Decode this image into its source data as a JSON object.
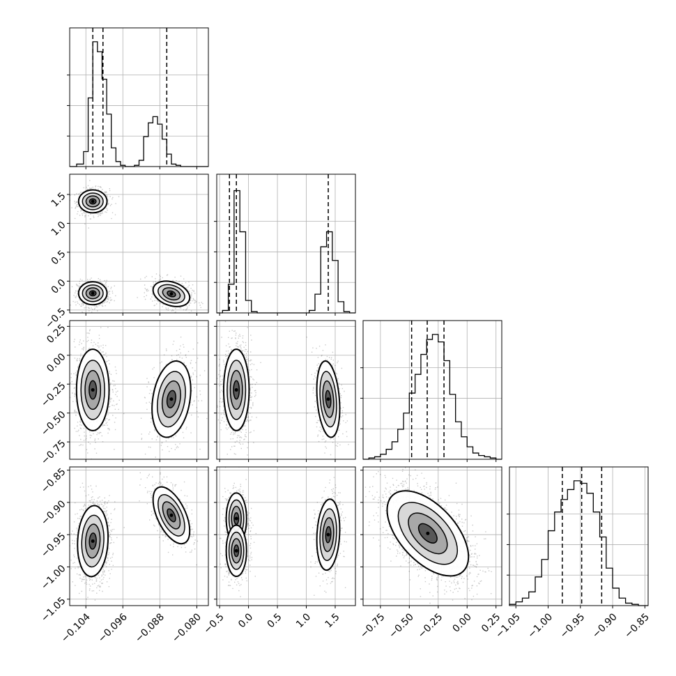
{
  "chart_data": {
    "type": "corner",
    "parameters": [
      {
        "range": [
          -0.1075,
          -0.0775
        ],
        "ticks": [
          -0.104,
          -0.096,
          -0.088,
          -0.08
        ],
        "tick_labels": [
          "−0.104",
          "−0.096",
          "−0.088",
          "−0.080"
        ]
      },
      {
        "range": [
          -0.55,
          1.85
        ],
        "ticks": [
          -0.5,
          0.0,
          0.5,
          1.0,
          1.5
        ],
        "tick_labels": [
          "−0.5",
          "0.0",
          "0.5",
          "1.0",
          "1.5"
        ]
      },
      {
        "range": [
          -0.9,
          0.3
        ],
        "ticks": [
          -0.75,
          -0.5,
          -0.25,
          0.0,
          0.25
        ],
        "tick_labels": [
          "−0.75",
          "−0.50",
          "−0.25",
          "0.00",
          "0.25"
        ]
      },
      {
        "range": [
          -1.06,
          -0.845
        ],
        "ticks": [
          -1.05,
          -1.0,
          -0.95,
          -0.9,
          -0.85
        ],
        "tick_labels": [
          "−1.05",
          "−1.00",
          "−0.95",
          "−0.90",
          "−0.85"
        ]
      }
    ],
    "histograms": [
      {
        "param": 0,
        "bin_left": [
          -0.1075,
          -0.106,
          -0.1045,
          -0.1035,
          -0.1025,
          -0.1015,
          -0.1005,
          -0.0995,
          -0.0985,
          -0.0975,
          -0.0965,
          -0.0955,
          -0.0945,
          -0.0935,
          -0.0925,
          -0.0915,
          -0.0905,
          -0.0895,
          -0.0885,
          -0.0875,
          -0.0865,
          -0.0855,
          -0.0845,
          -0.0835,
          -0.0825,
          -0.0815,
          -0.0805,
          -0.0795,
          -0.0785
        ],
        "counts": [
          0,
          0.02,
          0.12,
          0.55,
          1.0,
          0.92,
          0.7,
          0.42,
          0.15,
          0.04,
          0.01,
          0,
          0,
          0.01,
          0.05,
          0.24,
          0.35,
          0.4,
          0.34,
          0.22,
          0.1,
          0.02,
          0.01,
          0,
          0,
          0,
          0,
          0,
          0
        ],
        "quantiles": [
          -0.1025,
          -0.1003,
          -0.0865
        ]
      },
      {
        "param": 1,
        "bin_left": [
          -0.55,
          -0.45,
          -0.35,
          -0.25,
          -0.15,
          -0.05,
          0.05,
          0.15,
          0.25,
          0.35,
          0.45,
          0.55,
          0.65,
          0.75,
          0.85,
          0.95,
          1.05,
          1.15,
          1.25,
          1.35,
          1.45,
          1.55,
          1.65,
          1.75
        ],
        "counts": [
          0,
          0.02,
          0.23,
          0.98,
          0.65,
          0.1,
          0.01,
          0,
          0,
          0,
          0,
          0,
          0,
          0,
          0,
          0,
          0.02,
          0.15,
          0.53,
          0.65,
          0.42,
          0.09,
          0.01,
          0
        ],
        "quantiles": [
          -0.33,
          -0.21,
          1.38
        ]
      },
      {
        "param": 2,
        "bin_left": [
          -0.9,
          -0.85,
          -0.8,
          -0.75,
          -0.7,
          -0.65,
          -0.6,
          -0.55,
          -0.5,
          -0.45,
          -0.4,
          -0.35,
          -0.3,
          -0.25,
          -0.2,
          -0.15,
          -0.1,
          -0.05,
          0.0,
          0.05,
          0.1,
          0.15,
          0.2,
          0.25
        ],
        "counts": [
          0,
          0.01,
          0.02,
          0.04,
          0.08,
          0.14,
          0.24,
          0.37,
          0.53,
          0.68,
          0.84,
          0.96,
          1.0,
          0.94,
          0.79,
          0.52,
          0.3,
          0.18,
          0.1,
          0.05,
          0.03,
          0.02,
          0.01,
          0
        ],
        "quantiles": [
          -0.48,
          -0.345,
          -0.2
        ]
      },
      {
        "param": 3,
        "bin_left": [
          -1.06,
          -1.05,
          -1.04,
          -1.03,
          -1.02,
          -1.01,
          -1.0,
          -0.99,
          -0.98,
          -0.97,
          -0.96,
          -0.95,
          -0.94,
          -0.93,
          -0.92,
          -0.91,
          -0.9,
          -0.89,
          -0.88,
          -0.87,
          -0.86
        ],
        "counts": [
          0.01,
          0.03,
          0.06,
          0.11,
          0.23,
          0.37,
          0.6,
          0.75,
          0.85,
          0.93,
          1.0,
          0.98,
          0.9,
          0.75,
          0.55,
          0.3,
          0.14,
          0.06,
          0.02,
          0.01,
          0
        ],
        "quantiles": [
          -0.978,
          -0.948,
          -0.917
        ]
      }
    ],
    "clusters": {
      "1_0": [
        {
          "cx": -0.1025,
          "cy": 1.38,
          "sx": 0.0014,
          "sy": 0.09,
          "rho": 0.0,
          "w": 0.33
        },
        {
          "cx": -0.1025,
          "cy": -0.21,
          "sx": 0.0014,
          "sy": 0.09,
          "rho": 0.0,
          "w": 0.33
        },
        {
          "cx": -0.0855,
          "cy": -0.22,
          "sx": 0.0018,
          "sy": 0.1,
          "rho": -0.3,
          "w": 0.34
        }
      ],
      "2_0": [
        {
          "cx": -0.1025,
          "cy": -0.3,
          "sx": 0.0016,
          "sy": 0.16,
          "rho": 0.0,
          "w": 0.66
        },
        {
          "cx": -0.0855,
          "cy": -0.38,
          "sx": 0.0019,
          "sy": 0.15,
          "rho": 0.25,
          "w": 0.34
        }
      ],
      "3_0": [
        {
          "cx": -0.1025,
          "cy": -0.96,
          "sx": 0.0015,
          "sy": 0.025,
          "rho": 0.1,
          "w": 0.66
        },
        {
          "cx": -0.0855,
          "cy": -0.92,
          "sx": 0.0018,
          "sy": 0.02,
          "rho": -0.55,
          "w": 0.34
        }
      ],
      "2_1": [
        {
          "cx": -0.21,
          "cy": -0.3,
          "sx": 0.1,
          "sy": 0.16,
          "rho": 0.0,
          "w": 0.66
        },
        {
          "cx": 1.38,
          "cy": -0.38,
          "sx": 0.09,
          "sy": 0.15,
          "rho": -0.25,
          "w": 0.34
        }
      ],
      "3_1": [
        {
          "cx": -0.21,
          "cy": -0.925,
          "sx": 0.08,
          "sy": 0.018,
          "rho": 0.0,
          "w": 0.33
        },
        {
          "cx": -0.21,
          "cy": -0.975,
          "sx": 0.08,
          "sy": 0.018,
          "rho": 0.0,
          "w": 0.33
        },
        {
          "cx": 1.38,
          "cy": -0.95,
          "sx": 0.09,
          "sy": 0.025,
          "rho": 0.15,
          "w": 0.34
        }
      ],
      "3_2": [
        {
          "cx": -0.34,
          "cy": -0.948,
          "sx": 0.16,
          "sy": 0.03,
          "rho": -0.55,
          "w": 1.0
        }
      ]
    }
  }
}
